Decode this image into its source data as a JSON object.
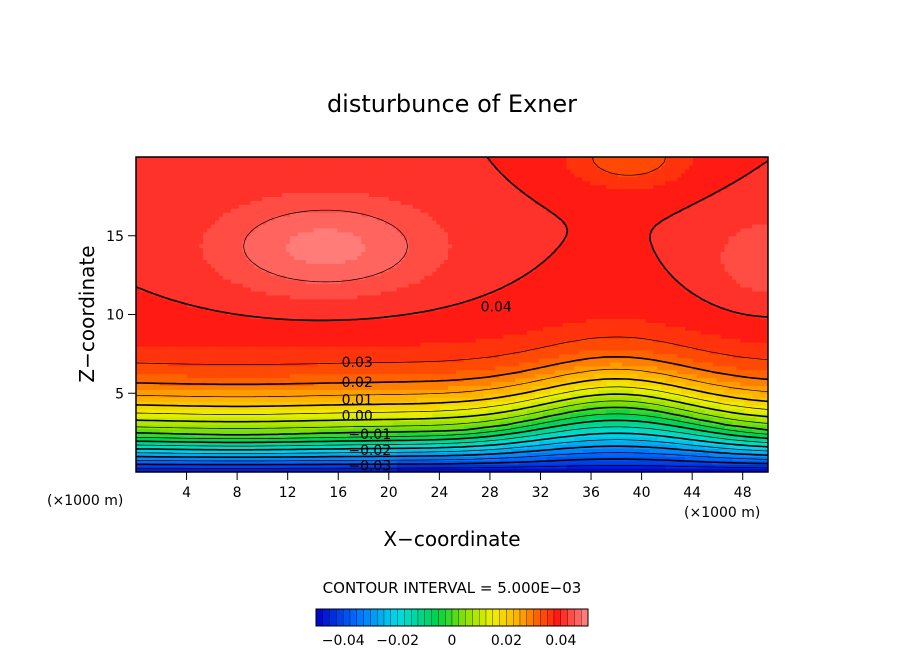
{
  "chart_data": {
    "type": "contour",
    "title": "disturbunce of Exner",
    "xlabel": "X−coordinate",
    "ylabel": "Z−coordinate",
    "x_unit_left": "(×1000 m)",
    "x_unit_right": "(×1000 m)",
    "xlim": [
      0,
      50
    ],
    "ylim": [
      0,
      20
    ],
    "xticks": [
      "4",
      "8",
      "12",
      "16",
      "20",
      "24",
      "28",
      "32",
      "36",
      "40",
      "44",
      "48"
    ],
    "xtick_values": [
      4,
      8,
      12,
      16,
      20,
      24,
      28,
      32,
      36,
      40,
      44,
      48
    ],
    "yticks": [
      "5",
      "10",
      "15"
    ],
    "ytick_values": [
      5,
      10,
      15
    ],
    "contour_interval_text": "CONTOUR INTERVAL = 5.000E−03",
    "contour_labels": [
      {
        "text": "0.04",
        "x": 28.5,
        "y": 10.5
      },
      {
        "text": "0.03",
        "x": 17.5,
        "y": 7.0
      },
      {
        "text": "0.02",
        "x": 17.5,
        "y": 5.7
      },
      {
        "text": "0.01",
        "x": 17.5,
        "y": 4.6
      },
      {
        "text": "0.00",
        "x": 17.5,
        "y": 3.6
      },
      {
        "text": "−0.01",
        "x": 18.5,
        "y": 2.4
      },
      {
        "text": "−0.02",
        "x": 18.5,
        "y": 1.4
      },
      {
        "text": "−0.03",
        "x": 18.5,
        "y": 0.4
      }
    ],
    "colorbar": {
      "range": [
        -0.05,
        0.05
      ],
      "ticks": [
        "−0.04",
        "−0.02",
        "0",
        "0.02",
        "0.04"
      ],
      "tick_values": [
        -0.04,
        -0.02,
        0,
        0.02,
        0.04
      ]
    }
  }
}
